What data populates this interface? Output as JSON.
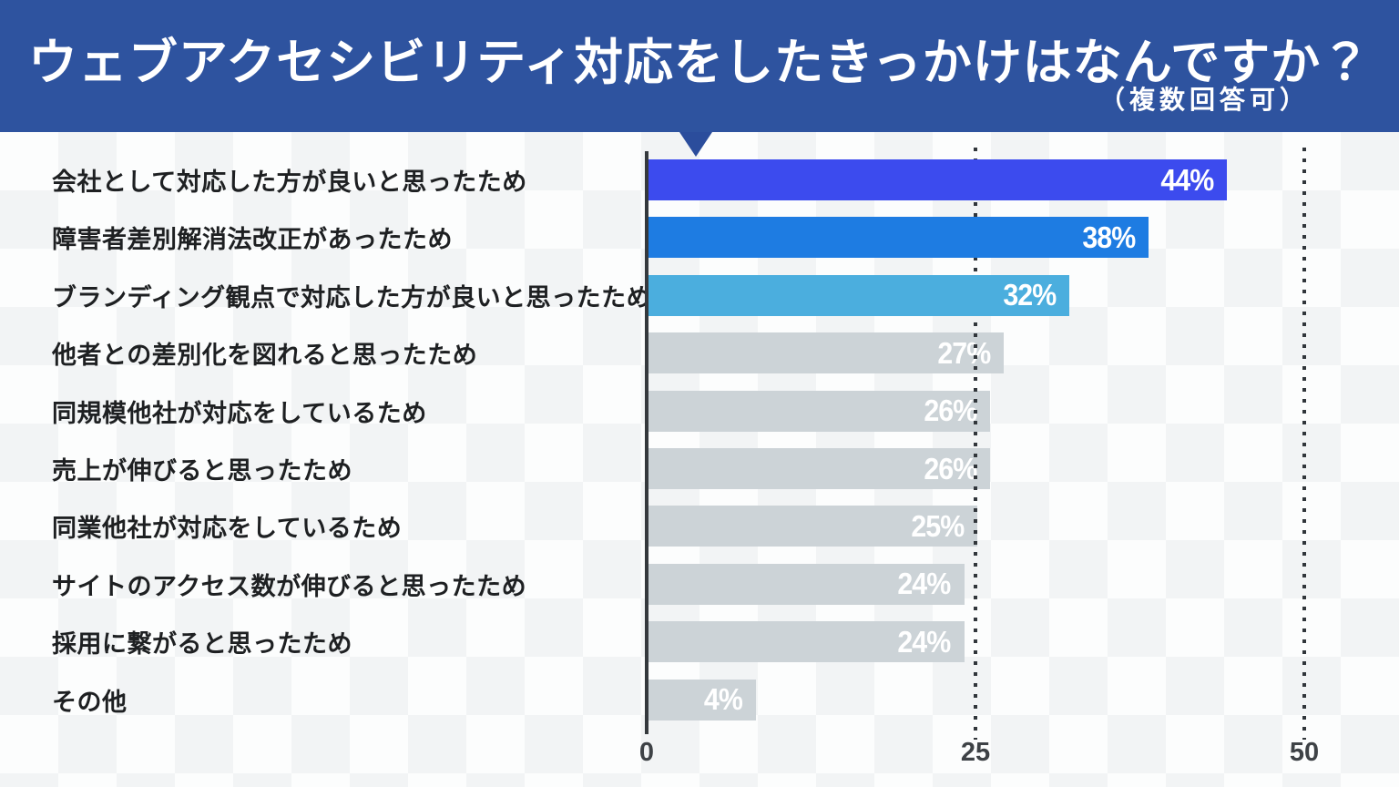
{
  "header": {
    "title": "ウェブアクセシビリティ対応をしたきっかけはなんですか？",
    "subtitle": "（複数回答可）",
    "background_color": "#2e539f",
    "pointer_color": "#2b4d9c"
  },
  "chart_data": {
    "type": "bar",
    "orientation": "horizontal",
    "title": "ウェブアクセシビリティ対応をしたきっかけはなんですか？",
    "subtitle": "（複数回答可）",
    "categories": [
      "会社として対応した方が良いと思ったため",
      "障害者差別解消法改正があったため",
      "ブランディング観点で対応した方が良いと思ったため",
      "他者との差別化を図れると思ったため",
      "同規模他社が対応をしているため",
      "売上が伸びると思ったため",
      "同業他社が対応をしているため",
      "サイトのアクセス数が伸びると思ったため",
      "採用に繋がると思ったため",
      "その他"
    ],
    "values": [
      44,
      38,
      32,
      27,
      26,
      26,
      25,
      24,
      24,
      4
    ],
    "value_labels": [
      "44%",
      "38%",
      "32%",
      "27%",
      "26%",
      "26%",
      "25%",
      "24%",
      "24%",
      "4%"
    ],
    "bar_colors": [
      "#3c4bee",
      "#1e7ce2",
      "#4baede",
      "#ccd3d7",
      "#ccd3d7",
      "#ccd3d7",
      "#ccd3d7",
      "#ccd3d7",
      "#ccd3d7",
      "#ccd3d7"
    ],
    "xlim": [
      0,
      50
    ],
    "x_ticks": [
      0,
      25,
      50
    ],
    "x_tick_labels": [
      "0",
      "25",
      "50"
    ],
    "gridlines": {
      "style": "dotted",
      "at": [
        25,
        50
      ],
      "color": "#31363b"
    },
    "axis_color": "#35393d",
    "value_label_color": "#ffffff",
    "legend": null
  }
}
